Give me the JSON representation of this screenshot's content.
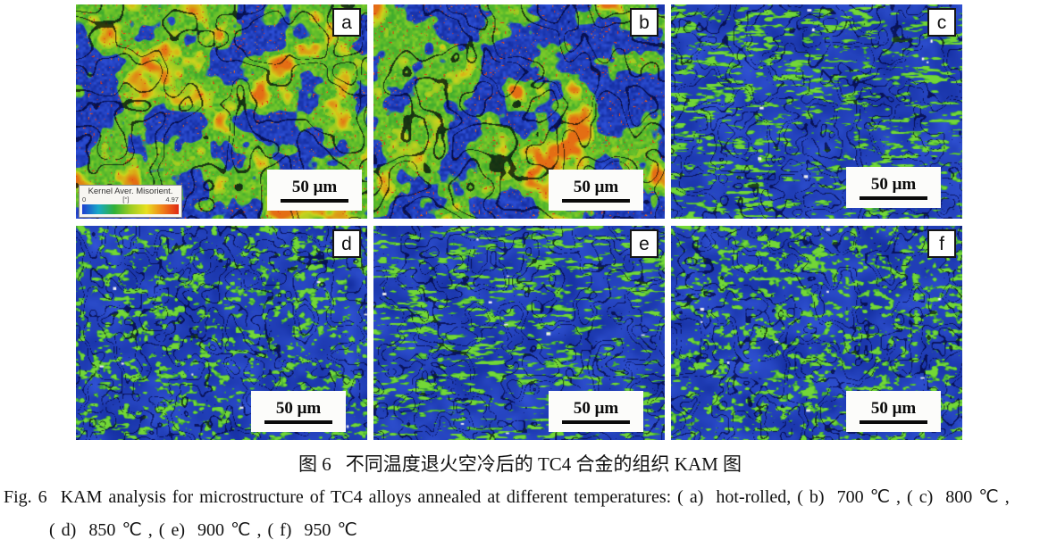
{
  "figure": {
    "panels": [
      {
        "label": "a",
        "scale_bar": "50 μm",
        "texture": "hot-a"
      },
      {
        "label": "b",
        "scale_bar": "50 μm",
        "texture": "hot-b"
      },
      {
        "label": "c",
        "scale_bar": "50 μm",
        "texture": "cold-streak"
      },
      {
        "label": "d",
        "scale_bar": "50 μm",
        "texture": "cold"
      },
      {
        "label": "e",
        "scale_bar": "50 μm",
        "texture": "cold-streak"
      },
      {
        "label": "f",
        "scale_bar": "50 μm",
        "texture": "cold"
      }
    ],
    "legend": {
      "title": "Kernel Aver. Misorient.",
      "min": "0",
      "unit": "[°]",
      "max": "4.97",
      "gradient": [
        "#1d3fd0",
        "#18a8c8",
        "#30b038",
        "#9ccc22",
        "#e8e020",
        "#f08018",
        "#e02814"
      ]
    },
    "colors": {
      "kam_low": "#1c38b4",
      "kam_mid": "#58b82c",
      "kam_high": "#e03418"
    }
  },
  "captions": {
    "chinese": {
      "label": "图 6",
      "text": "不同温度退火空冷后的 TC4 合金的组织 KAM 图"
    },
    "english": {
      "label": "Fig. 6",
      "line1": "KAM analysis for microstructure of TC4 alloys annealed at different temperatures: ( a)  hot-rolled, ( b)  700 ℃ , ( c)  800 ℃ ,",
      "line2": "( d)  850 ℃ , ( e)  900 ℃ , ( f)  950 ℃"
    }
  }
}
